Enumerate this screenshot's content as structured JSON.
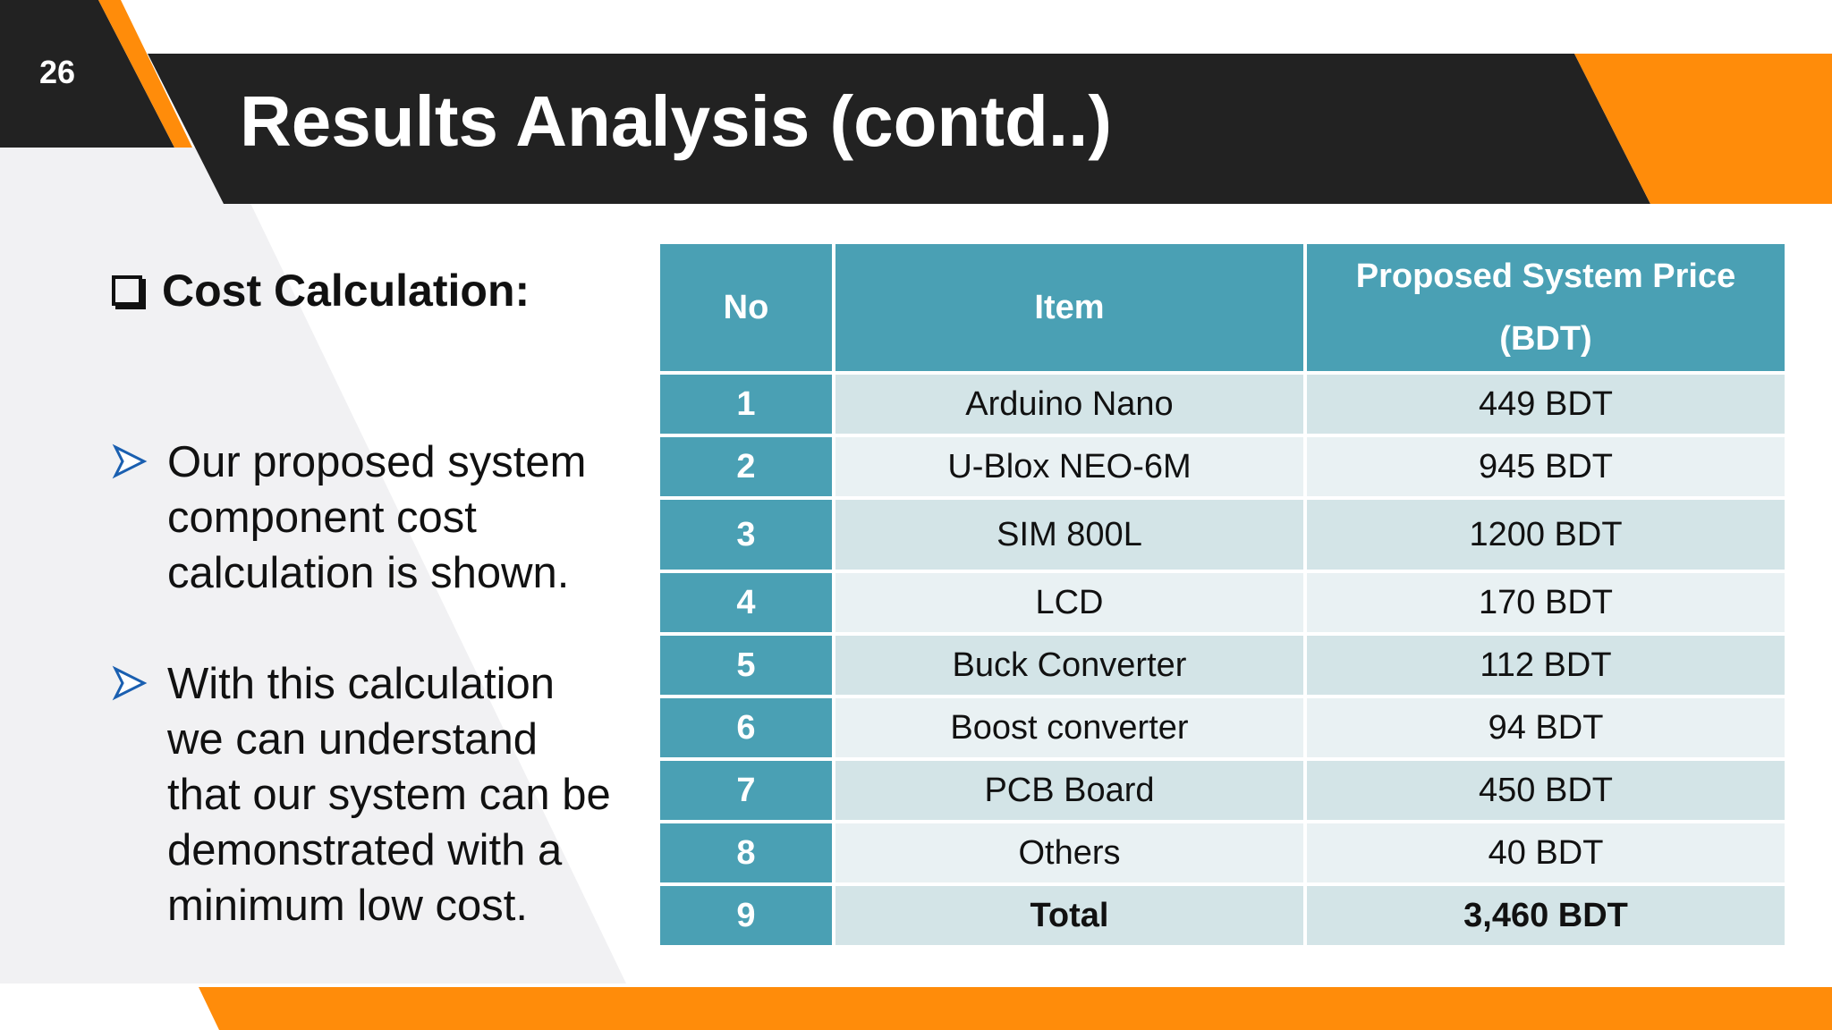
{
  "slide_number": "26",
  "title": "Results Analysis (contd..)",
  "section_heading": "Cost Calculation:",
  "bullets": [
    "Our proposed system component cost calculation is shown.",
    "With this calculation we can understand that our system can be demonstrated with a minimum low cost."
  ],
  "colors": {
    "dark": "#222222",
    "orange": "#ff8c0a",
    "table_header": "#4aa0b4",
    "row_odd": "#d3e4e7",
    "row_even": "#e9f1f3"
  },
  "table": {
    "headers": [
      "No",
      "Item",
      "Proposed System Price (BDT)"
    ],
    "rows": [
      {
        "no": "1",
        "item": "Arduino Nano",
        "price": "449 BDT"
      },
      {
        "no": "2",
        "item": "U-Blox NEO-6M",
        "price": "945 BDT"
      },
      {
        "no": "3",
        "item": "SIM 800L",
        "price": "1200 BDT"
      },
      {
        "no": "4",
        "item": "LCD",
        "price": "170 BDT"
      },
      {
        "no": "5",
        "item": "Buck Converter",
        "price": "112 BDT"
      },
      {
        "no": "6",
        "item": "Boost converter",
        "price": "94  BDT"
      },
      {
        "no": "7",
        "item": "PCB Board",
        "price": "450 BDT"
      },
      {
        "no": "8",
        "item": "Others",
        "price": "40  BDT"
      },
      {
        "no": "9",
        "item": "Total",
        "price": "3,460 BDT"
      }
    ]
  }
}
